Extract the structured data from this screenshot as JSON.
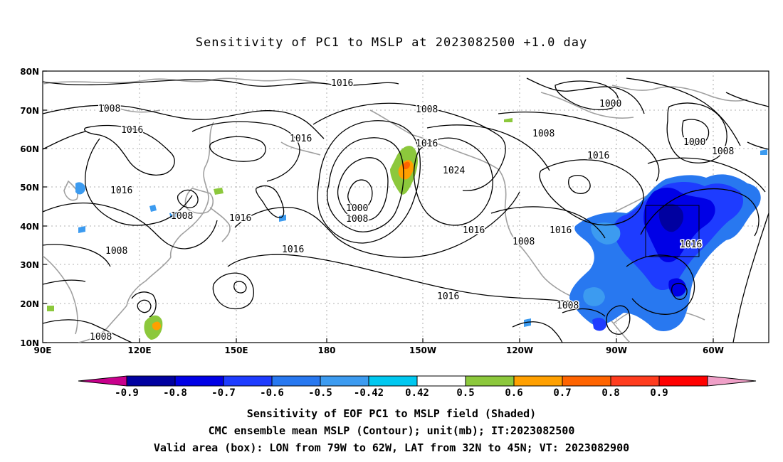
{
  "title": "Sensitivity of PC1 to MSLP at 2023082500 +1.0 day",
  "lat_labels": [
    "80N",
    "70N",
    "60N",
    "50N",
    "40N",
    "30N",
    "20N",
    "10N"
  ],
  "lon_labels": [
    "90E",
    "120E",
    "150E",
    "180",
    "150W",
    "120W",
    "90W",
    "60W"
  ],
  "contour_labels": {
    "c1": "1016",
    "c2": "1008",
    "c3": "1016",
    "c4": "1016",
    "c5": "1008",
    "c6": "1016",
    "c7": "1008",
    "c8": "1016",
    "c9": "1000",
    "c10": "1008",
    "c11": "1008",
    "c12": "1016",
    "c13": "1024",
    "c14": "1016",
    "c15": "1016",
    "c16": "1008",
    "c17": "1016",
    "c18": "1008",
    "c19": "1008",
    "c20": "1000",
    "c21": "1000",
    "c22": "1008",
    "c23": "1016",
    "c24": "1016",
    "c25": "1008",
    "c26": "1016",
    "c27": "1016"
  },
  "colorbar": {
    "labels": [
      "-0.9",
      "-0.8",
      "-0.7",
      "-0.6",
      "-0.5",
      "-0.42",
      "0.42",
      "0.5",
      "0.6",
      "0.7",
      "0.8",
      "0.9"
    ],
    "colors": [
      "#c8008c",
      "#0000a0",
      "#0000e6",
      "#1e3cff",
      "#2878f0",
      "#3c9bf0",
      "#00c8f0",
      "#ffffff",
      "#8cc83c",
      "#ffa000",
      "#ff6400",
      "#ff3c1e",
      "#ff0000",
      "#f0a0c8"
    ]
  },
  "captions": {
    "line1": "Sensitivity of EOF PC1 to MSLP field (Shaded)",
    "line2": "CMC ensemble mean MSLP (Contour); unit(mb); IT:2023082500",
    "line3": "Valid area (box): LON from 79W to 62W, LAT from 32N to 45N; VT: 2023082900"
  }
}
